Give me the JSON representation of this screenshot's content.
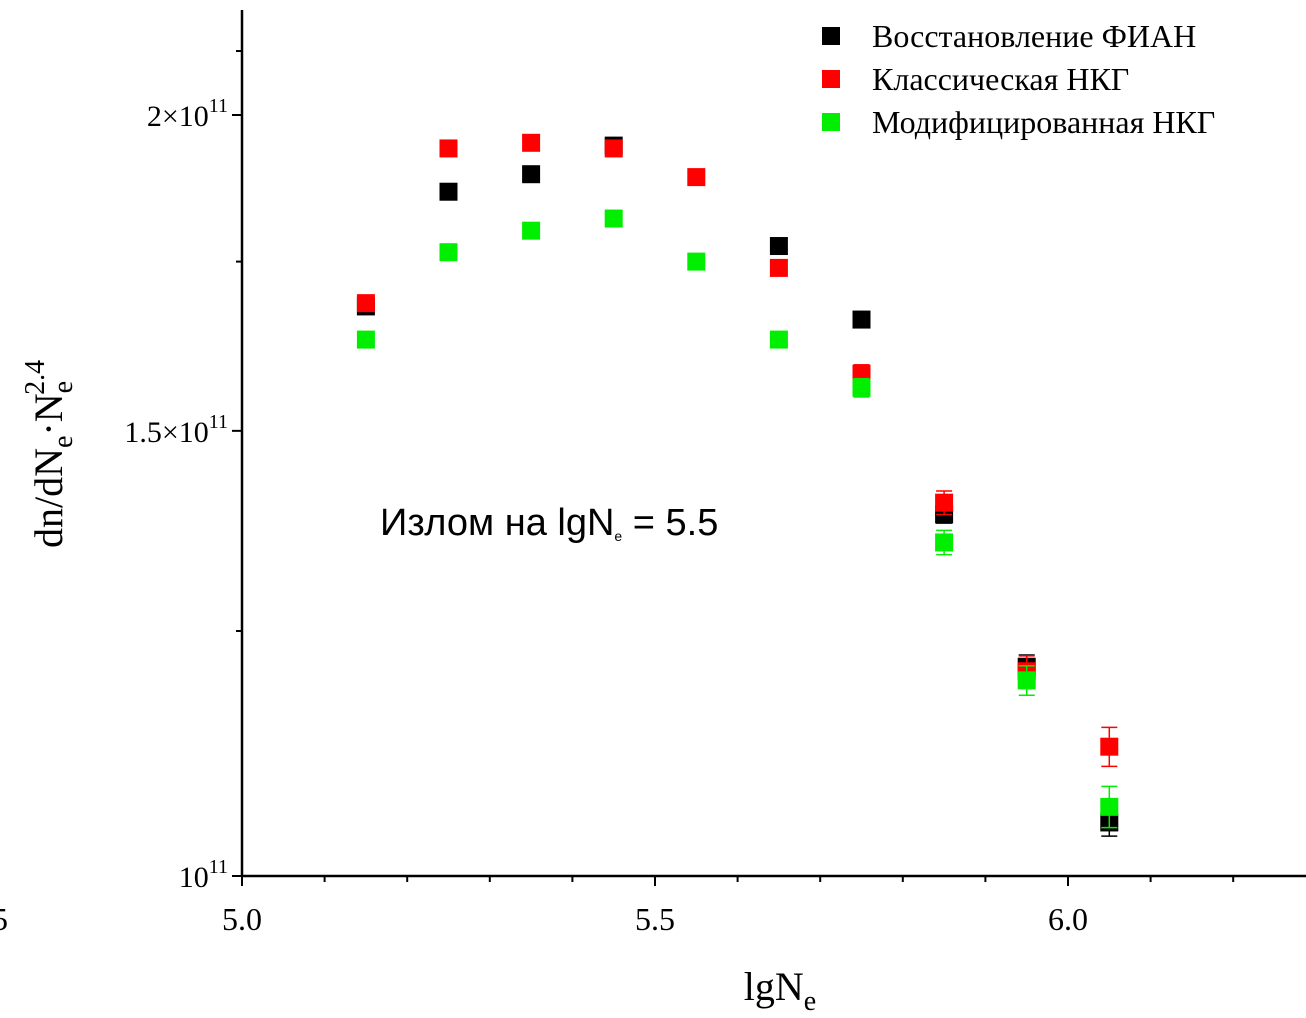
{
  "chart_data": {
    "type": "scatter",
    "xlabel": {
      "base": "lgN",
      "sub": "e"
    },
    "ylabel": {
      "part1": "dn/dN",
      "sub1": "e",
      "dot": "·N",
      "sub2": "e",
      "sup": "2.4"
    },
    "xlim": [
      5.0,
      6.28
    ],
    "ylim": [
      100000000000.0,
      216000000000.0
    ],
    "y_scale": "log",
    "x_ticks": [
      {
        "value": 5.0,
        "label": "5.0"
      },
      {
        "value": 5.5,
        "label": "5.5"
      },
      {
        "value": 6.0,
        "label": "6.0"
      }
    ],
    "y_ticks": [
      {
        "value": 100000000000.0,
        "mantissa": "",
        "exp": "11",
        "label": "10"
      },
      {
        "value": 150000000000.0,
        "mantissa": "1.5×10",
        "exp": "11",
        "label": ""
      },
      {
        "value": 200000000000.0,
        "mantissa": "2×10",
        "exp": "11",
        "label": ""
      }
    ],
    "stray_tick_label": "5",
    "annotation": {
      "text": "Излом на lgN",
      "sub": "e",
      "tail": " = 5.5"
    },
    "legend_position": "top-right",
    "grid": false,
    "series": [
      {
        "name": "Восстановление ФИАН",
        "color": "#000000",
        "x": [
          5.15,
          5.25,
          5.35,
          5.45,
          5.65,
          5.75,
          5.85,
          5.95,
          6.05
        ],
        "y": [
          168000000000.0,
          186500000000.0,
          189500000000.0,
          194500000000.0,
          177500000000.0,
          166000000000.0,
          139000000000.0,
          121000000000.0,
          105000000000.0
        ],
        "err": [
          300000000.0,
          300000000.0,
          300000000.0,
          300000000.0,
          800000000.0,
          1200000000.0,
          1100000000.0,
          1300000000.0,
          1300000000.0
        ]
      },
      {
        "name": "Классическая НКГ",
        "color": "#ff0000",
        "x": [
          5.15,
          5.25,
          5.35,
          5.45,
          5.55,
          5.65,
          5.75,
          5.85,
          5.95,
          6.05
        ],
        "y": [
          168500000000.0,
          194000000000.0,
          195000000000.0,
          194000000000.0,
          189000000000.0,
          174000000000.0,
          158000000000.0,
          140500000000.0,
          120500000000.0,
          112500000000.0
        ],
        "err": [
          300000000.0,
          300000000.0,
          300000000.0,
          600000000.0,
          800000000.0,
          1000000000.0,
          1300000000.0,
          1500000000.0,
          1700000000.0,
          2000000000.0
        ]
      },
      {
        "name": "Модифицированная НКГ",
        "color": "#00ee00",
        "x": [
          5.15,
          5.25,
          5.35,
          5.45,
          5.55,
          5.65,
          5.75,
          5.85,
          5.95,
          6.05
        ],
        "y": [
          163000000000.0,
          176500000000.0,
          180000000000.0,
          182000000000.0,
          175000000000.0,
          163000000000.0,
          156000000000.0,
          135500000000.0,
          119500000000.0,
          106500000000.0
        ],
        "err": [
          300000000.0,
          300000000.0,
          300000000.0,
          500000000.0,
          800000000.0,
          900000000.0,
          1300000000.0,
          1500000000.0,
          1600000000.0,
          2000000000.0
        ]
      }
    ]
  }
}
